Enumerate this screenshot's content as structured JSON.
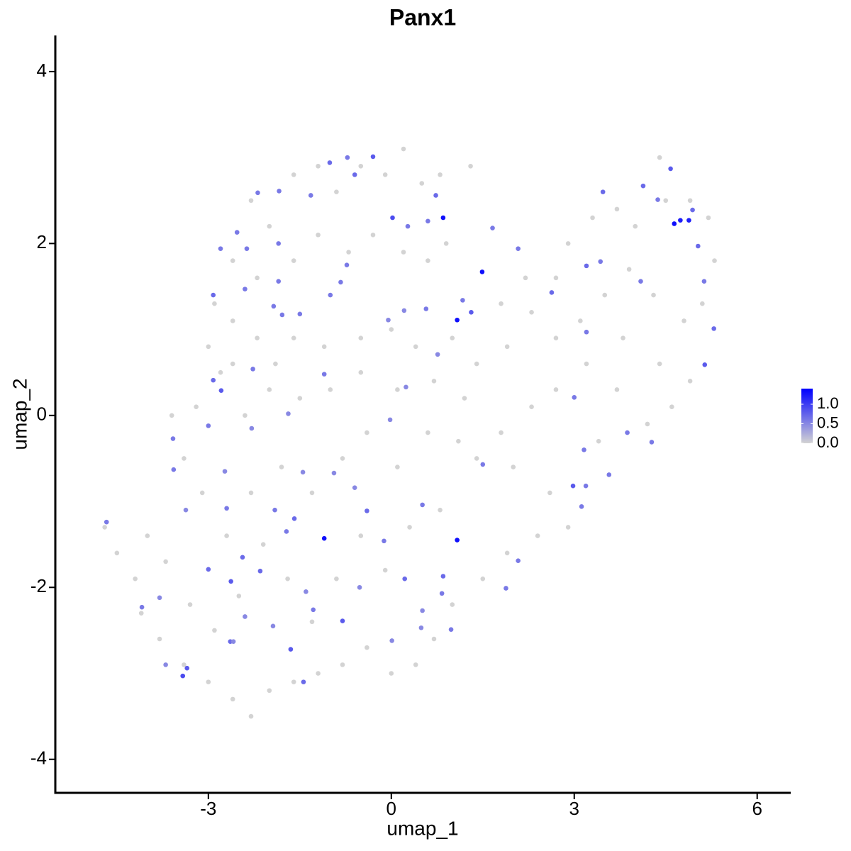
{
  "chart_data": {
    "type": "scatter",
    "title": "Panx1",
    "x_label": "umap_1",
    "y_label": "umap_2",
    "xlim": [
      -5.51,
      6.55
    ],
    "ylim": [
      -4.39,
      4.42
    ],
    "xticks": [
      -3,
      0,
      3,
      6
    ],
    "yticks": [
      -4,
      -2,
      0,
      2,
      4
    ],
    "color_scale": [
      "#d3d3d3",
      "#0000ff"
    ],
    "color_lim": [
      0,
      1.4
    ],
    "color_ticks": [
      {
        "value": 0,
        "label": "0.0"
      },
      {
        "value": 0.5,
        "label": "0.5"
      },
      {
        "value": 1,
        "label": "1.0"
      }
    ],
    "x": [
      -2.3,
      -2.0,
      -1.6,
      -1.2,
      -0.9,
      -0.5,
      -0.1,
      0.2,
      0.5,
      0.8,
      1.3,
      0.9,
      0.6,
      0.2,
      -0.3,
      -0.7,
      -1.2,
      -1.6,
      -2.2,
      -2.6,
      -2.9,
      -2.6,
      -2.2,
      -1.6,
      -1.1,
      -0.5,
      0.0,
      0.4,
      1.0,
      1.4,
      1.9,
      2.3,
      2.7,
      2.2,
      1.8,
      2.9,
      3.3,
      3.7,
      4.0,
      4.5,
      4.4,
      4.9,
      5.2,
      5.3,
      5.1,
      4.8,
      4.3,
      3.9,
      3.5,
      3.1,
      2.7,
      3.8,
      4.4,
      4.9,
      4.6,
      4.2,
      3.7,
      3.4,
      3.2,
      2.7,
      2.3,
      1.8,
      1.4,
      2.0,
      2.6,
      2.9,
      2.4,
      1.9,
      1.5,
      1.0,
      0.7,
      0.4,
      0.0,
      -0.4,
      -0.8,
      -1.2,
      -1.6,
      -2.0,
      -2.3,
      -2.6,
      -3.0,
      -3.4,
      -3.8,
      -4.1,
      -4.2,
      -4.5,
      -4.7,
      -4.0,
      -3.7,
      -3.3,
      -2.9,
      -2.5,
      -2.1,
      -1.7,
      -1.3,
      -0.9,
      -0.5,
      -0.1,
      0.3,
      0.8,
      1.1,
      0.6,
      0.1,
      -0.4,
      -0.8,
      -1.3,
      -1.8,
      -2.3,
      -2.7,
      -3.1,
      -3.4,
      -3.6,
      -3.2,
      -2.8,
      -2.4,
      -2.0,
      -1.5,
      -1.0,
      -0.5,
      0.1,
      0.7,
      1.2,
      -3.0,
      -2.6,
      -1.9,
      0.85,
      1.49,
      1.08,
      -1.1,
      1.08,
      4.64,
      4.74,
      4.88,
      0.02,
      4.58,
      3.47,
      5.14,
      5.29,
      -2.92,
      -2.92,
      -2.79,
      -3.42,
      -3.35,
      -2.63,
      -1.65,
      -0.8,
      -2.44,
      -3.0,
      -2.15,
      -2.64,
      -1.44,
      -3.58,
      -3.57,
      -3.37,
      -4.09,
      -4.67,
      -1.59,
      -1.91,
      -1.72,
      -0.4,
      -0.12,
      0.51,
      0.85,
      0.22,
      0.83,
      0.51,
      0.98,
      1.88,
      2.08,
      2.98,
      3.19,
      3.16,
      3.57,
      3.0,
      4.27,
      3.87,
      3.12,
      2.63,
      3.2,
      3.43,
      3.2,
      4.13,
      4.37,
      5.03,
      4.94,
      5.13,
      4.09,
      2.08,
      1.66,
      1.17,
      1.31,
      0.57,
      0.73,
      0.27,
      0.6,
      -0.6,
      -0.72,
      -1.01,
      -0.3,
      -1.32,
      -1.84,
      -2.19,
      -2.53,
      -2.37,
      -1.85,
      -2.8,
      -1.85,
      -2.4,
      -1.93,
      -1.79,
      -1.5,
      -1.1,
      -1.0,
      -0.83,
      -0.73,
      -2.27,
      -1.69,
      -2.29,
      -3.0,
      -0.02,
      0.24,
      0.76,
      1.5,
      -0.05,
      0.21,
      -3.8,
      -3.7,
      -2.4,
      -2.59,
      -1.94,
      -1.4,
      -1.28,
      -0.52,
      0.49,
      0.01,
      -0.6,
      -0.94,
      -1.45,
      -2.73,
      -2.7
    ],
    "y": [
      2.5,
      2.2,
      2.8,
      2.9,
      2.6,
      2.9,
      2.8,
      3.1,
      2.7,
      2.8,
      2.9,
      2.0,
      1.8,
      1.9,
      2.1,
      1.9,
      2.1,
      1.8,
      1.6,
      1.8,
      1.3,
      1.1,
      0.9,
      0.9,
      0.8,
      0.9,
      1.0,
      0.8,
      0.9,
      0.6,
      0.8,
      1.2,
      1.6,
      1.6,
      1.3,
      2.0,
      2.3,
      2.4,
      2.2,
      2.5,
      3.0,
      2.5,
      2.3,
      1.8,
      1.3,
      1.1,
      1.4,
      1.7,
      1.4,
      1.1,
      0.9,
      0.9,
      0.6,
      0.4,
      0.1,
      -0.1,
      0.3,
      -0.3,
      0.6,
      0.3,
      0.1,
      -0.2,
      -0.5,
      -0.6,
      -0.9,
      -1.3,
      -1.4,
      -1.6,
      -1.9,
      -2.2,
      -2.6,
      -2.9,
      -3.0,
      -2.7,
      -2.9,
      -3.0,
      -3.1,
      -3.2,
      -3.5,
      -3.3,
      -3.1,
      -2.9,
      -2.6,
      -2.3,
      -1.9,
      -1.6,
      -1.3,
      -1.4,
      -1.7,
      -2.2,
      -2.5,
      -2.1,
      -1.5,
      -1.9,
      -2.4,
      -1.9,
      -1.4,
      -1.8,
      -1.3,
      -1.1,
      -0.3,
      -0.2,
      -0.6,
      -0.2,
      -0.5,
      -0.9,
      -0.6,
      -0.9,
      -1.4,
      -0.9,
      -0.5,
      0.0,
      0.1,
      0.5,
      0.0,
      0.3,
      0.2,
      0.3,
      0.5,
      0.3,
      0.4,
      0.2,
      0.8,
      0.6,
      0.6,
      2.3,
      1.67,
      1.11,
      -1.43,
      -1.45,
      2.23,
      2.27,
      2.27,
      2.3,
      2.87,
      2.6,
      0.59,
      1.01,
      1.4,
      0.41,
      0.29,
      -3.03,
      -2.94,
      -1.93,
      -2.72,
      -2.39,
      -1.65,
      -1.79,
      -1.81,
      -2.63,
      -3.1,
      -0.27,
      -0.63,
      -1.1,
      -2.23,
      -1.24,
      -1.2,
      -1.1,
      -1.35,
      -1.11,
      -1.46,
      -1.04,
      -1.87,
      -1.9,
      -2.07,
      -2.27,
      -2.49,
      -2.01,
      -1.69,
      -0.82,
      -0.82,
      -0.4,
      -0.69,
      0.21,
      -0.31,
      -0.2,
      -1.06,
      1.43,
      1.74,
      1.79,
      0.97,
      2.67,
      2.51,
      1.97,
      2.39,
      1.56,
      1.56,
      1.94,
      2.18,
      1.34,
      1.2,
      1.24,
      2.56,
      2.2,
      2.26,
      2.8,
      3.0,
      2.94,
      3.01,
      2.56,
      2.61,
      2.59,
      2.13,
      1.94,
      2.0,
      1.94,
      1.56,
      1.47,
      1.27,
      1.17,
      1.18,
      0.48,
      1.4,
      1.55,
      1.75,
      0.54,
      0.02,
      -0.15,
      -0.12,
      -0.05,
      0.33,
      0.71,
      -0.57,
      1.11,
      1.22,
      -2.12,
      -2.9,
      -2.34,
      -2.63,
      -2.45,
      -2.05,
      -2.26,
      -2.0,
      -2.47,
      -2.62,
      -0.84,
      -0.67,
      -0.66,
      -0.65,
      -1.08
    ],
    "expression": [
      0,
      0,
      0,
      0,
      0,
      0,
      0,
      0,
      0,
      0,
      0,
      0,
      0,
      0,
      0,
      0,
      0,
      0,
      0,
      0,
      0,
      0,
      0,
      0,
      0,
      0,
      0,
      0,
      0,
      0,
      0,
      0,
      0,
      0,
      0,
      0,
      0,
      0,
      0,
      0,
      0,
      0,
      0,
      0,
      0,
      0,
      0,
      0,
      0,
      0,
      0,
      0,
      0,
      0,
      0,
      0,
      0,
      0,
      0,
      0,
      0,
      0,
      0,
      0,
      0,
      0,
      0,
      0,
      0,
      0,
      0,
      0,
      0,
      0,
      0,
      0,
      0,
      0,
      0,
      0,
      0,
      0,
      0,
      0,
      0,
      0,
      0,
      0,
      0,
      0,
      0,
      0,
      0,
      0,
      0,
      0,
      0,
      0,
      0,
      0,
      0,
      0,
      0,
      0,
      0,
      0,
      0,
      0,
      0,
      0,
      0,
      0,
      0,
      0,
      0,
      0,
      0,
      0,
      0,
      0,
      0,
      0,
      0,
      0,
      0,
      1.3,
      1.3,
      1.3,
      1.3,
      1.3,
      1.3,
      1.2,
      1.2,
      0.9,
      0.8,
      0.7,
      0.8,
      0.7,
      0.7,
      0.7,
      0.8,
      0.9,
      0.8,
      0.8,
      0.8,
      0.8,
      0.7,
      0.7,
      0.7,
      0.7,
      0.7,
      0.6,
      0.6,
      0.5,
      0.6,
      0.6,
      0.7,
      0.6,
      0.6,
      0.7,
      0.6,
      0.6,
      0.7,
      0.7,
      0.6,
      0.5,
      0.6,
      0.6,
      0.6,
      0.8,
      0.6,
      0.6,
      0.6,
      0.6,
      0.6,
      0.6,
      0.6,
      0.7,
      0.7,
      0.6,
      0.6,
      0.7,
      0.6,
      0.7,
      0.7,
      0.6,
      0.6,
      0.6,
      0.6,
      0.6,
      0.8,
      0.6,
      0.7,
      0.6,
      0.6,
      0.7,
      0.6,
      0.7,
      0.8,
      0.6,
      0.6,
      0.6,
      0.6,
      0.6,
      0.6,
      0.6,
      0.6,
      0.6,
      0.6,
      0.6,
      0.6,
      0.6,
      0.6,
      0.6,
      0.6,
      0.6,
      0.5,
      0.5,
      0.6,
      0.5,
      0.5,
      0.5,
      0.6,
      0.5,
      0.5,
      0.5,
      0.5,
      0.5,
      0.5,
      0.5,
      0.5,
      0.6,
      0.5,
      0.5,
      0.5,
      0.5,
      0.5,
      0.5,
      0.5,
      0.6
    ]
  }
}
